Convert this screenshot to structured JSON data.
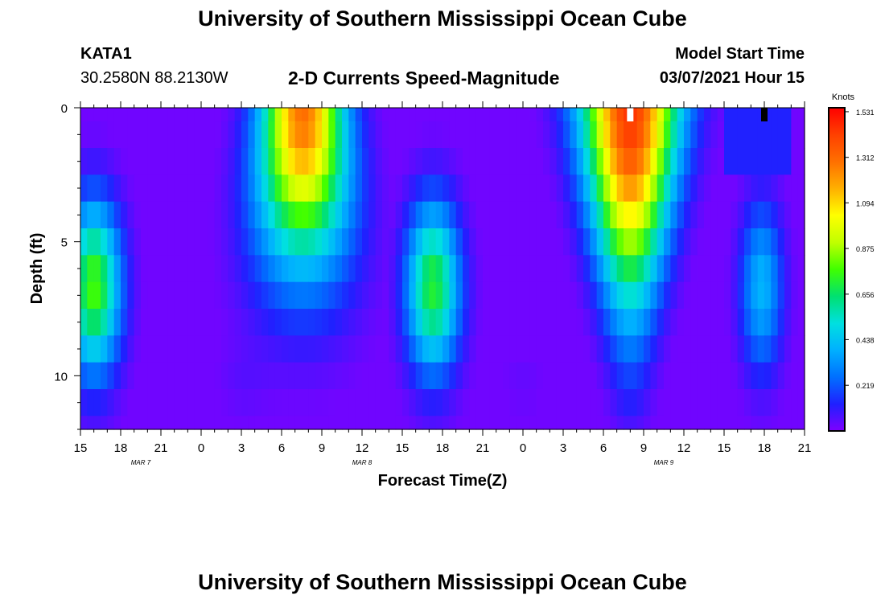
{
  "header": {
    "title": "University of Southern Mississippi Ocean Cube",
    "station": "KATA1",
    "coords": "30.2580N 88.2130W",
    "subtitle": "2-D Currents Speed-Magnitude",
    "model_start_label": "Model Start Time",
    "model_start_value": "03/07/2021 Hour 15"
  },
  "footer": {
    "title": "University of Southern Mississippi Ocean Cube"
  },
  "colors": {
    "scale": [
      "#7f00ff",
      "#2020ff",
      "#0070ff",
      "#00b0ff",
      "#00e0e0",
      "#00e070",
      "#40ff00",
      "#c0ff00",
      "#ffff00",
      "#ffb000",
      "#ff7000",
      "#ff4000",
      "#ff0000"
    ],
    "marker_white": "#ffffff",
    "marker_black": "#000000"
  },
  "chart_data": {
    "type": "heatmap",
    "title": "2-D Currents Speed-Magnitude",
    "xlabel": "Forecast Time(Z)",
    "ylabel": "Depth (ft)",
    "xlim": [
      0,
      54
    ],
    "ylim": [
      12,
      0
    ],
    "x_ticks": [
      {
        "hour": 0,
        "label": "15"
      },
      {
        "hour": 3,
        "label": "18"
      },
      {
        "hour": 6,
        "label": "21"
      },
      {
        "hour": 9,
        "label": "0"
      },
      {
        "hour": 12,
        "label": "3"
      },
      {
        "hour": 15,
        "label": "6"
      },
      {
        "hour": 18,
        "label": "9"
      },
      {
        "hour": 21,
        "label": "12"
      },
      {
        "hour": 24,
        "label": "15"
      },
      {
        "hour": 27,
        "label": "18"
      },
      {
        "hour": 30,
        "label": "21"
      },
      {
        "hour": 33,
        "label": "0"
      },
      {
        "hour": 36,
        "label": "3"
      },
      {
        "hour": 39,
        "label": "6"
      },
      {
        "hour": 42,
        "label": "9"
      },
      {
        "hour": 45,
        "label": "12"
      },
      {
        "hour": 48,
        "label": "15"
      },
      {
        "hour": 51,
        "label": "18"
      },
      {
        "hour": 54,
        "label": "21"
      }
    ],
    "date_labels": [
      {
        "hour": 4.5,
        "label": "MAR 7"
      },
      {
        "hour": 21,
        "label": "MAR 8"
      },
      {
        "hour": 43.5,
        "label": "MAR 9"
      }
    ],
    "y_ticks": [
      0,
      5,
      10
    ],
    "colorbar": {
      "unit": "Knots",
      "min": 0,
      "max": 1.55,
      "ticks": [
        1.531,
        1.312,
        1.094,
        0.875,
        0.656,
        0.438,
        0.219
      ]
    },
    "markers": [
      {
        "hour": 41,
        "color": "white"
      },
      {
        "hour": 51,
        "color": "black"
      }
    ]
  }
}
